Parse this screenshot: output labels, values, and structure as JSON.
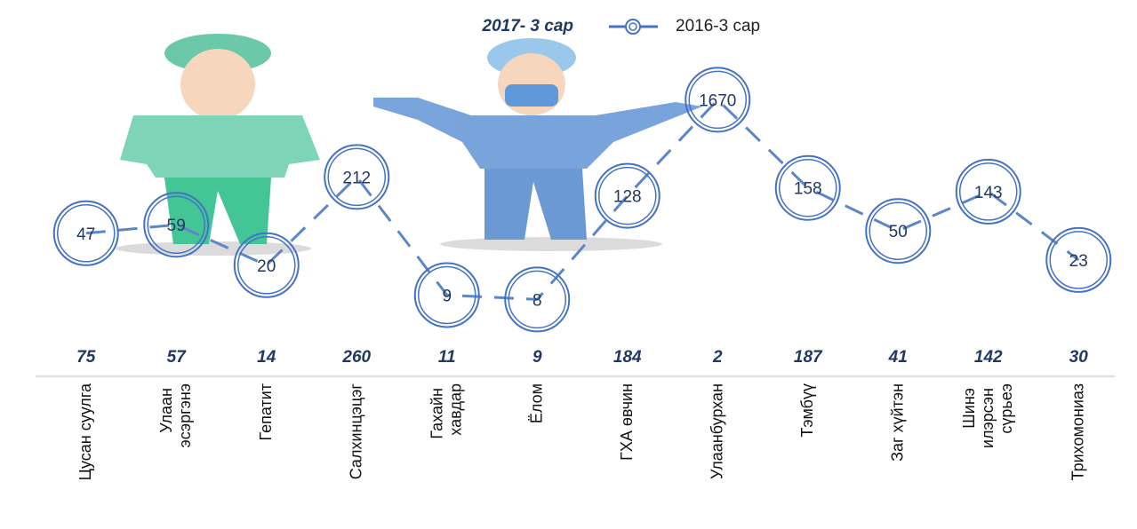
{
  "chart_data": {
    "type": "line",
    "categories": [
      "Цусан суулга",
      "Улаан эсэргэнэ",
      "Гепатит",
      "Салхинцэцэг",
      "Гахайн хавдар",
      "Ёлом",
      "ГХА өвчин",
      "Улаанбурхан",
      "Тэмбүү",
      "Заг хүйтэн",
      "Шинэ илэрсэн сүрьеэ",
      "Трихомониаз"
    ],
    "series": [
      {
        "name": "2017- 3 сар",
        "color": "#1f3864",
        "values": [
          75,
          57,
          14,
          260,
          11,
          9,
          184,
          2,
          187,
          41,
          142,
          30
        ]
      },
      {
        "name": "2016-3 сар",
        "color": "#4472c4",
        "values": [
          47,
          59,
          20,
          212,
          9,
          8,
          128,
          1670,
          158,
          50,
          143,
          23
        ]
      }
    ],
    "log_scale": true,
    "ylim": [
      1,
      10000
    ]
  }
}
